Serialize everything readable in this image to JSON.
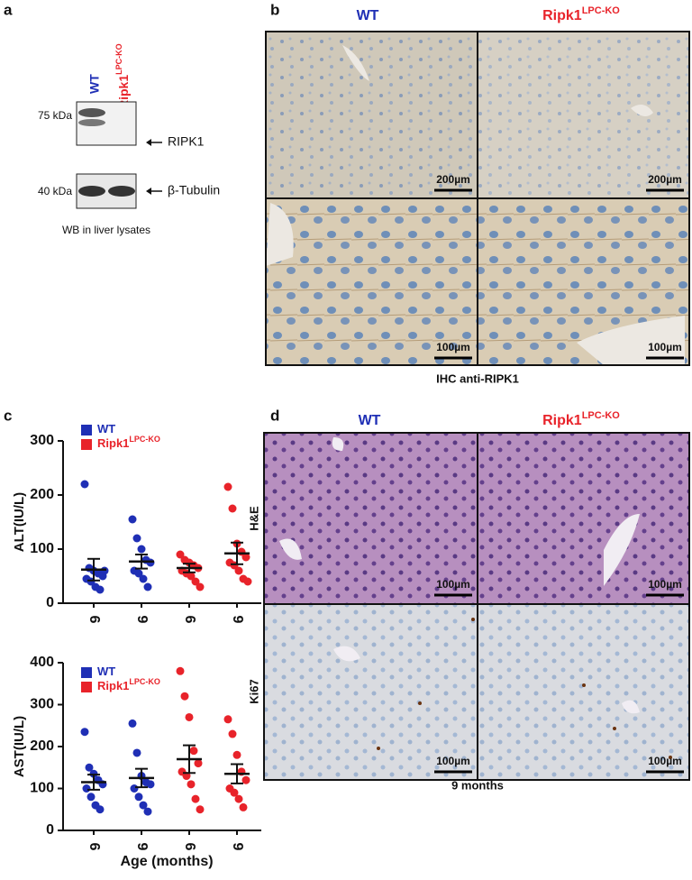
{
  "panel_a": {
    "letter": "a",
    "lane_1": "WT",
    "lane_2": "Ripk1",
    "lane_2_sup": "LPC-KO",
    "markers": [
      "75 kDa",
      "40 kDa"
    ],
    "bands": [
      "RIPK1",
      "β-Tubulin"
    ],
    "caption": "WB in liver lysates"
  },
  "panel_b": {
    "letter": "b",
    "columns": [
      {
        "text": "WT"
      },
      {
        "text": "Ripk1",
        "sup": "LPC-KO"
      }
    ],
    "scale_bars": [
      "200µm",
      "200µm",
      "100µm",
      "100µm"
    ],
    "caption": "IHC anti-RIPK1"
  },
  "panel_c": {
    "letter": "c"
  },
  "panel_d": {
    "letter": "d",
    "columns": [
      {
        "text": "WT"
      },
      {
        "text": "Ripk1",
        "sup": "LPC-KO"
      }
    ],
    "rows": [
      "H&E",
      "Ki67"
    ],
    "scale_bars": [
      "100µm",
      "100µm",
      "100µm",
      "100µm"
    ],
    "caption": "9 months"
  },
  "chart_data": [
    {
      "type": "dotplot",
      "ylabel": "ALT(IU/L)",
      "categories": [
        "6",
        "9",
        "6",
        "9"
      ],
      "ylim": [
        0,
        300
      ],
      "yticks": [
        0,
        100,
        200,
        300
      ],
      "series": [
        {
          "name": "WT",
          "color": "#1f2fb5",
          "values": [
            [
              220,
              65,
              60,
              55,
              50,
              45,
              40,
              30,
              25,
              60
            ],
            [
              155,
              120,
              100,
              80,
              75,
              60,
              55,
              45,
              30
            ],
            null,
            null
          ],
          "means": [
            62,
            77,
            null,
            null
          ],
          "errors": [
            20,
            13,
            null,
            null
          ]
        },
        {
          "name": "Ripk1",
          "sup": "LPC-KO",
          "color": "#e8232a",
          "values": [
            null,
            null,
            [
              90,
              80,
              75,
              70,
              65,
              60,
              55,
              50,
              40,
              30
            ],
            [
              215,
              175,
              110,
              95,
              85,
              75,
              70,
              60,
              45,
              40
            ]
          ],
          "means": [
            null,
            null,
            65,
            92
          ],
          "errors": [
            null,
            null,
            8,
            20
          ]
        }
      ]
    },
    {
      "type": "dotplot",
      "ylabel": "AST(IU/L)",
      "xlabel": "Age (months)",
      "categories": [
        "6",
        "9",
        "6",
        "9"
      ],
      "ylim": [
        0,
        400
      ],
      "yticks": [
        0,
        100,
        200,
        300,
        400
      ],
      "series": [
        {
          "name": "WT",
          "color": "#1f2fb5",
          "values": [
            [
              235,
              150,
              135,
              120,
              110,
              100,
              80,
              60,
              50
            ],
            [
              255,
              185,
              130,
              115,
              110,
              100,
              80,
              60,
              45
            ],
            null,
            null
          ],
          "means": [
            115,
            125,
            null,
            null
          ],
          "errors": [
            18,
            22,
            null,
            null
          ]
        },
        {
          "name": "Ripk1",
          "sup": "LPC-KO",
          "color": "#e8232a",
          "values": [
            null,
            null,
            [
              380,
              320,
              270,
              190,
              160,
              140,
              130,
              110,
              75,
              50
            ],
            [
              265,
              230,
              180,
              140,
              120,
              100,
              90,
              75,
              55
            ]
          ],
          "means": [
            null,
            null,
            170,
            135
          ],
          "errors": [
            null,
            null,
            33,
            23
          ]
        }
      ]
    }
  ]
}
